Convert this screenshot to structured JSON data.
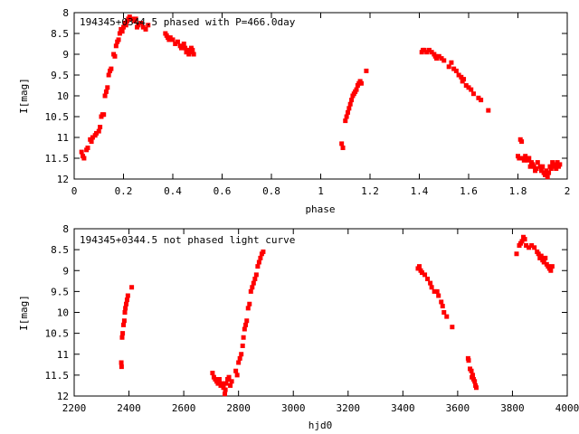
{
  "chart_data": [
    {
      "type": "scatter",
      "title": "194345+0344.5 phased with P=466.0day",
      "xlabel": "phase",
      "ylabel": "I[mag]",
      "xlim": [
        0,
        2
      ],
      "ylim": [
        8,
        12
      ],
      "y_inverted": true,
      "xticks": [
        "0",
        "0.2",
        "0.4",
        "0.6",
        "0.8",
        "1",
        "1.2",
        "1.4",
        "1.6",
        "1.8",
        "2"
      ],
      "yticks": [
        "8",
        "8.5",
        "9",
        "9.5",
        "10",
        "10.5",
        "11",
        "11.5",
        "12"
      ],
      "grid": false,
      "marker_color": "#ff0000",
      "series": [
        {
          "points": [
            [
              0.03,
              11.35
            ],
            [
              0.035,
              11.45
            ],
            [
              0.04,
              11.5
            ],
            [
              0.05,
              11.3
            ],
            [
              0.055,
              11.25
            ],
            [
              0.065,
              11.05
            ],
            [
              0.07,
              11.1
            ],
            [
              0.075,
              11.0
            ],
            [
              0.085,
              10.95
            ],
            [
              0.09,
              10.9
            ],
            [
              0.1,
              10.85
            ],
            [
              0.105,
              10.75
            ],
            [
              0.11,
              10.5
            ],
            [
              0.115,
              10.45
            ],
            [
              0.12,
              10.45
            ],
            [
              0.125,
              10.0
            ],
            [
              0.13,
              9.9
            ],
            [
              0.135,
              9.8
            ],
            [
              0.14,
              9.5
            ],
            [
              0.145,
              9.4
            ],
            [
              0.15,
              9.35
            ],
            [
              0.16,
              9.0
            ],
            [
              0.165,
              9.05
            ],
            [
              0.17,
              8.8
            ],
            [
              0.175,
              8.7
            ],
            [
              0.18,
              8.65
            ],
            [
              0.185,
              8.5
            ],
            [
              0.19,
              8.4
            ],
            [
              0.195,
              8.45
            ],
            [
              0.2,
              8.35
            ],
            [
              0.205,
              8.25
            ],
            [
              0.21,
              8.3
            ],
            [
              0.215,
              8.2
            ],
            [
              0.22,
              8.15
            ],
            [
              0.225,
              8.1
            ],
            [
              0.235,
              8.15
            ],
            [
              0.245,
              8.2
            ],
            [
              0.25,
              8.15
            ],
            [
              0.255,
              8.35
            ],
            [
              0.26,
              8.3
            ],
            [
              0.27,
              8.25
            ],
            [
              0.28,
              8.35
            ],
            [
              0.29,
              8.4
            ],
            [
              0.3,
              8.3
            ],
            [
              0.37,
              8.5
            ],
            [
              0.375,
              8.55
            ],
            [
              0.38,
              8.6
            ],
            [
              0.385,
              8.65
            ],
            [
              0.39,
              8.6
            ],
            [
              0.4,
              8.65
            ],
            [
              0.41,
              8.75
            ],
            [
              0.42,
              8.7
            ],
            [
              0.43,
              8.8
            ],
            [
              0.435,
              8.85
            ],
            [
              0.44,
              8.8
            ],
            [
              0.445,
              8.75
            ],
            [
              0.45,
              8.85
            ],
            [
              0.455,
              8.95
            ],
            [
              0.46,
              8.9
            ],
            [
              0.465,
              9.0
            ],
            [
              0.47,
              8.95
            ],
            [
              0.475,
              8.85
            ],
            [
              0.48,
              8.9
            ],
            [
              0.485,
              9.0
            ],
            [
              1.085,
              11.15
            ],
            [
              1.09,
              11.25
            ],
            [
              1.1,
              10.6
            ],
            [
              1.105,
              10.5
            ],
            [
              1.11,
              10.4
            ],
            [
              1.115,
              10.3
            ],
            [
              1.12,
              10.2
            ],
            [
              1.125,
              10.1
            ],
            [
              1.13,
              10.0
            ],
            [
              1.135,
              9.95
            ],
            [
              1.14,
              9.9
            ],
            [
              1.145,
              9.85
            ],
            [
              1.15,
              9.75
            ],
            [
              1.155,
              9.7
            ],
            [
              1.16,
              9.65
            ],
            [
              1.165,
              9.7
            ],
            [
              1.185,
              9.4
            ],
            [
              1.41,
              8.95
            ],
            [
              1.415,
              8.9
            ],
            [
              1.42,
              8.9
            ],
            [
              1.43,
              8.95
            ],
            [
              1.44,
              8.9
            ],
            [
              1.45,
              8.95
            ],
            [
              1.46,
              9.0
            ],
            [
              1.465,
              9.05
            ],
            [
              1.47,
              9.1
            ],
            [
              1.48,
              9.05
            ],
            [
              1.49,
              9.1
            ],
            [
              1.5,
              9.15
            ],
            [
              1.52,
              9.3
            ],
            [
              1.53,
              9.2
            ],
            [
              1.54,
              9.35
            ],
            [
              1.55,
              9.4
            ],
            [
              1.56,
              9.5
            ],
            [
              1.57,
              9.55
            ],
            [
              1.575,
              9.65
            ],
            [
              1.58,
              9.6
            ],
            [
              1.59,
              9.75
            ],
            [
              1.6,
              9.8
            ],
            [
              1.61,
              9.85
            ],
            [
              1.62,
              9.95
            ],
            [
              1.64,
              10.05
            ],
            [
              1.65,
              10.1
            ],
            [
              1.68,
              10.35
            ],
            [
              1.8,
              11.45
            ],
            [
              1.805,
              11.5
            ],
            [
              1.81,
              11.05
            ],
            [
              1.815,
              11.1
            ],
            [
              1.82,
              11.5
            ],
            [
              1.825,
              11.55
            ],
            [
              1.83,
              11.45
            ],
            [
              1.84,
              11.55
            ],
            [
              1.845,
              11.5
            ],
            [
              1.85,
              11.7
            ],
            [
              1.855,
              11.6
            ],
            [
              1.86,
              11.65
            ],
            [
              1.865,
              11.7
            ],
            [
              1.87,
              11.8
            ],
            [
              1.875,
              11.75
            ],
            [
              1.88,
              11.6
            ],
            [
              1.89,
              11.7
            ],
            [
              1.895,
              11.8
            ],
            [
              1.9,
              11.7
            ],
            [
              1.905,
              11.85
            ],
            [
              1.91,
              11.9
            ],
            [
              1.915,
              11.8
            ],
            [
              1.92,
              11.95
            ],
            [
              1.925,
              11.85
            ],
            [
              1.93,
              11.7
            ],
            [
              1.935,
              11.75
            ],
            [
              1.94,
              11.6
            ],
            [
              1.945,
              11.7
            ],
            [
              1.95,
              11.65
            ],
            [
              1.955,
              11.75
            ],
            [
              1.96,
              11.6
            ],
            [
              1.965,
              11.7
            ],
            [
              1.97,
              11.65
            ]
          ]
        }
      ]
    },
    {
      "type": "scatter",
      "title": "194345+0344.5 not phased light curve",
      "xlabel": "hjd0",
      "ylabel": "I[mag]",
      "xlim": [
        2200,
        4000
      ],
      "ylim": [
        8,
        12
      ],
      "y_inverted": true,
      "xticks": [
        "2200",
        "2400",
        "2600",
        "2800",
        "3000",
        "3200",
        "3400",
        "3600",
        "3800",
        "4000"
      ],
      "yticks": [
        "8",
        "8.5",
        "9",
        "9.5",
        "10",
        "10.5",
        "11",
        "11.5",
        "12"
      ],
      "grid": false,
      "marker_color": "#ff0000",
      "series": [
        {
          "points": [
            [
              2372,
              11.2
            ],
            [
              2373,
              11.3
            ],
            [
              2375,
              10.6
            ],
            [
              2377,
              10.5
            ],
            [
              2380,
              10.3
            ],
            [
              2383,
              10.2
            ],
            [
              2385,
              10.0
            ],
            [
              2387,
              9.9
            ],
            [
              2390,
              9.8
            ],
            [
              2393,
              9.7
            ],
            [
              2396,
              9.6
            ],
            [
              2410,
              9.4
            ],
            [
              2705,
              11.45
            ],
            [
              2710,
              11.55
            ],
            [
              2715,
              11.6
            ],
            [
              2720,
              11.65
            ],
            [
              2725,
              11.7
            ],
            [
              2730,
              11.6
            ],
            [
              2735,
              11.75
            ],
            [
              2740,
              11.7
            ],
            [
              2745,
              11.8
            ],
            [
              2750,
              11.95
            ],
            [
              2752,
              11.85
            ],
            [
              2755,
              11.7
            ],
            [
              2760,
              11.6
            ],
            [
              2765,
              11.55
            ],
            [
              2770,
              11.75
            ],
            [
              2775,
              11.65
            ],
            [
              2790,
              11.4
            ],
            [
              2795,
              11.5
            ],
            [
              2800,
              11.2
            ],
            [
              2805,
              11.1
            ],
            [
              2810,
              11.0
            ],
            [
              2815,
              10.8
            ],
            [
              2818,
              10.6
            ],
            [
              2822,
              10.4
            ],
            [
              2826,
              10.3
            ],
            [
              2830,
              10.2
            ],
            [
              2835,
              9.9
            ],
            [
              2840,
              9.8
            ],
            [
              2845,
              9.5
            ],
            [
              2850,
              9.4
            ],
            [
              2855,
              9.3
            ],
            [
              2860,
              9.2
            ],
            [
              2865,
              9.1
            ],
            [
              2870,
              8.9
            ],
            [
              2875,
              8.8
            ],
            [
              2880,
              8.7
            ],
            [
              2885,
              8.6
            ],
            [
              2890,
              8.55
            ],
            [
              3455,
              8.95
            ],
            [
              3460,
              8.9
            ],
            [
              3465,
              9.0
            ],
            [
              3470,
              9.05
            ],
            [
              3480,
              9.1
            ],
            [
              3490,
              9.2
            ],
            [
              3500,
              9.3
            ],
            [
              3505,
              9.4
            ],
            [
              3515,
              9.5
            ],
            [
              3525,
              9.5
            ],
            [
              3530,
              9.6
            ],
            [
              3540,
              9.75
            ],
            [
              3545,
              9.85
            ],
            [
              3550,
              10.0
            ],
            [
              3560,
              10.1
            ],
            [
              3580,
              10.35
            ],
            [
              3638,
              11.1
            ],
            [
              3640,
              11.15
            ],
            [
              3645,
              11.35
            ],
            [
              3650,
              11.4
            ],
            [
              3652,
              11.55
            ],
            [
              3655,
              11.5
            ],
            [
              3658,
              11.6
            ],
            [
              3662,
              11.65
            ],
            [
              3665,
              11.75
            ],
            [
              3668,
              11.8
            ],
            [
              3815,
              8.6
            ],
            [
              3825,
              8.4
            ],
            [
              3830,
              8.35
            ],
            [
              3835,
              8.3
            ],
            [
              3840,
              8.2
            ],
            [
              3845,
              8.25
            ],
            [
              3850,
              8.4
            ],
            [
              3860,
              8.45
            ],
            [
              3870,
              8.4
            ],
            [
              3880,
              8.45
            ],
            [
              3890,
              8.55
            ],
            [
              3895,
              8.6
            ],
            [
              3900,
              8.7
            ],
            [
              3905,
              8.65
            ],
            [
              3910,
              8.75
            ],
            [
              3915,
              8.8
            ],
            [
              3920,
              8.7
            ],
            [
              3925,
              8.85
            ],
            [
              3930,
              8.9
            ],
            [
              3935,
              8.95
            ],
            [
              3940,
              9.0
            ],
            [
              3945,
              8.9
            ]
          ]
        }
      ]
    }
  ]
}
